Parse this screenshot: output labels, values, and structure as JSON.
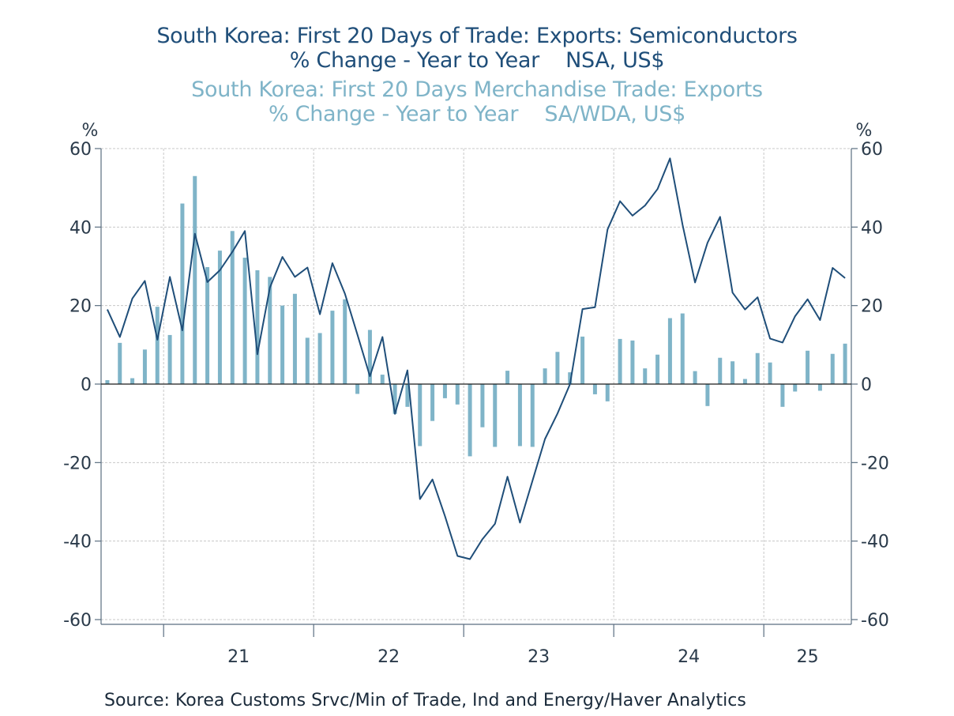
{
  "chart_data": {
    "type": "bar+line",
    "titles": [
      "South Korea: First 20 Days of Trade: Exports: Semiconductors",
      "% Change - Year to Year    NSA, US$",
      "South Korea: First 20 Days Merchandise Trade: Exports",
      "% Change - Year to Year    SA/WDA, US$"
    ],
    "left_unit": "%",
    "right_unit": "%",
    "ylim": [
      -60,
      60
    ],
    "yticks": [
      "60",
      "40",
      "20",
      "0",
      "-20",
      "-40",
      "-60"
    ],
    "x_labels": [
      "21",
      "22",
      "23",
      "24",
      "25"
    ],
    "x_start": "2020-08",
    "source": "Source:  Korea Customs Srvc/Min of Trade, Ind and Energy/Haver Analytics",
    "series": [
      {
        "name": "South Korea: First 20 Days Merchandise Trade: Exports",
        "kind": "bar",
        "color": "#7fb4c8",
        "values": [
          1,
          10.5,
          1.5,
          8.8,
          19.7,
          12.5,
          46,
          53,
          29.8,
          34,
          39,
          32.2,
          29,
          27.3,
          20,
          23,
          11.8,
          13,
          18.7,
          21.6,
          -2.5,
          13.8,
          2.4,
          -7.6,
          -5.8,
          -15.8,
          -9.4,
          -3.6,
          -5.2,
          -18.4,
          -11,
          -16,
          3.4,
          -15.8,
          -16,
          4,
          8.2,
          3,
          12.1,
          -2.6,
          -4.4,
          11.5,
          11.1,
          4,
          7.5,
          16.8,
          18,
          3.3,
          -5.6,
          6.7,
          5.8,
          1.3,
          7.9,
          5.5,
          -5.8,
          -1.9,
          8.5,
          -1.7,
          7.7,
          10.3
        ]
      },
      {
        "name": "South Korea: First 20 Days of Trade: Exports: Semiconductors",
        "kind": "line",
        "color": "#1f4e79",
        "values": [
          19,
          12,
          21.8,
          26.3,
          11.3,
          27.3,
          13.7,
          38.3,
          26,
          29,
          33.7,
          39,
          7.6,
          24.6,
          32.4,
          27.3,
          29.7,
          17.8,
          30.8,
          23,
          12.6,
          2,
          12,
          -7.6,
          3.5,
          -29.3,
          -24.3,
          -33.6,
          -43.8,
          -44.6,
          -39.5,
          -35.6,
          -23.6,
          -35.3,
          -24.6,
          -14,
          -7.5,
          0,
          19.1,
          19.6,
          39.4,
          46.6,
          42.9,
          45.5,
          49.7,
          57.5,
          40.6,
          25.9,
          36,
          42.6,
          23.3,
          19,
          22.1,
          11.6,
          10.6,
          17.3,
          21.6,
          16.3,
          29.6,
          27
        ]
      }
    ]
  }
}
